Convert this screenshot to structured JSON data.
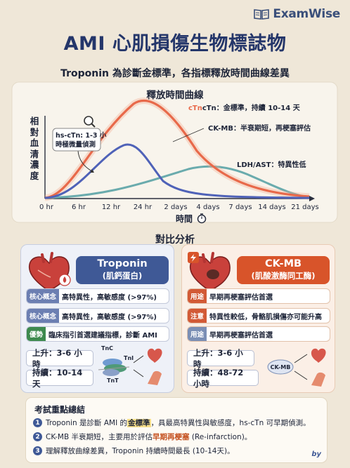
{
  "brand": {
    "name": "ExamWise",
    "icon": "book-icon"
  },
  "title": "AMI 心肌損傷生物標誌物",
  "subtitle": "Troponin 為診斷金標準，各指標釋放時間曲線差異",
  "chart": {
    "title": "釋放時間曲線",
    "ylabel": "相對血清濃度",
    "xlabel": "時間",
    "x_ticks": [
      "0 hr",
      "6 hr",
      "12 hr",
      "24 hr",
      "2 days",
      "4 days",
      "7 days",
      "14 days",
      "21 days"
    ],
    "annotations": {
      "ctn": "cTn：金標準，持續 10-14 天",
      "ckmb": "CK-MB：半衰期短，再梗塞評估",
      "ldh": "LDH/AST：特異性低",
      "hs1": "hs-cTn: 1-3 小",
      "hs2": "時極微量偵測"
    },
    "colors": {
      "ctn": "#e8694a",
      "ckmb": "#4f62b8",
      "ldh": "#5aa3a6"
    }
  },
  "compare": {
    "title": "對比分析",
    "troponin": {
      "name": "Troponin",
      "sub": "(肌鈣蛋白)",
      "rows": [
        {
          "tag": "核心概念",
          "text": "高特異性，高敏感度 (>97%)"
        },
        {
          "tag": "核心概念",
          "text": "高特異性，高敏感度 (>97%)"
        },
        {
          "tag": "優勢",
          "text": "臨床指引首選建議指標，診斷 AMI"
        }
      ],
      "rise": "上升：3-6 小時",
      "duration": "持續：10-14 天",
      "complex": {
        "tnc": "TnC",
        "tni": "TnI",
        "tnt": "TnT"
      }
    },
    "ckmb": {
      "name": "CK-MB",
      "sub": "(肌酸激酶同工酶)",
      "rows": [
        {
          "tag": "用途",
          "text": "早期再梗塞評估首選"
        },
        {
          "tag": "注意",
          "text": "特異性較低，骨骼肌損傷亦可能升高"
        },
        {
          "tag": "用途",
          "text": "早期再梗塞評估首選"
        }
      ],
      "rise": "上升：3-6 小時",
      "duration": "持續：48-72 小時",
      "label": "CK-MB"
    }
  },
  "summary": {
    "title": "考試重點總結",
    "items": [
      {
        "num": "1",
        "pre": "Troponin 是診斷 AMI 的",
        "hl": "金標準",
        "post": "，具最高特異性與敏感度，hs-cTn 可早期偵測。"
      },
      {
        "num": "2",
        "pre": "CK-MB 半衰期短，主要用於評估",
        "hl": "早期再梗塞",
        "post": " (Re-infarction)。"
      },
      {
        "num": "3",
        "pre": "理解釋放曲線差異，Troponin 持續時間最長 (10-14天)。",
        "hl": "",
        "post": ""
      }
    ],
    "by": "by"
  }
}
